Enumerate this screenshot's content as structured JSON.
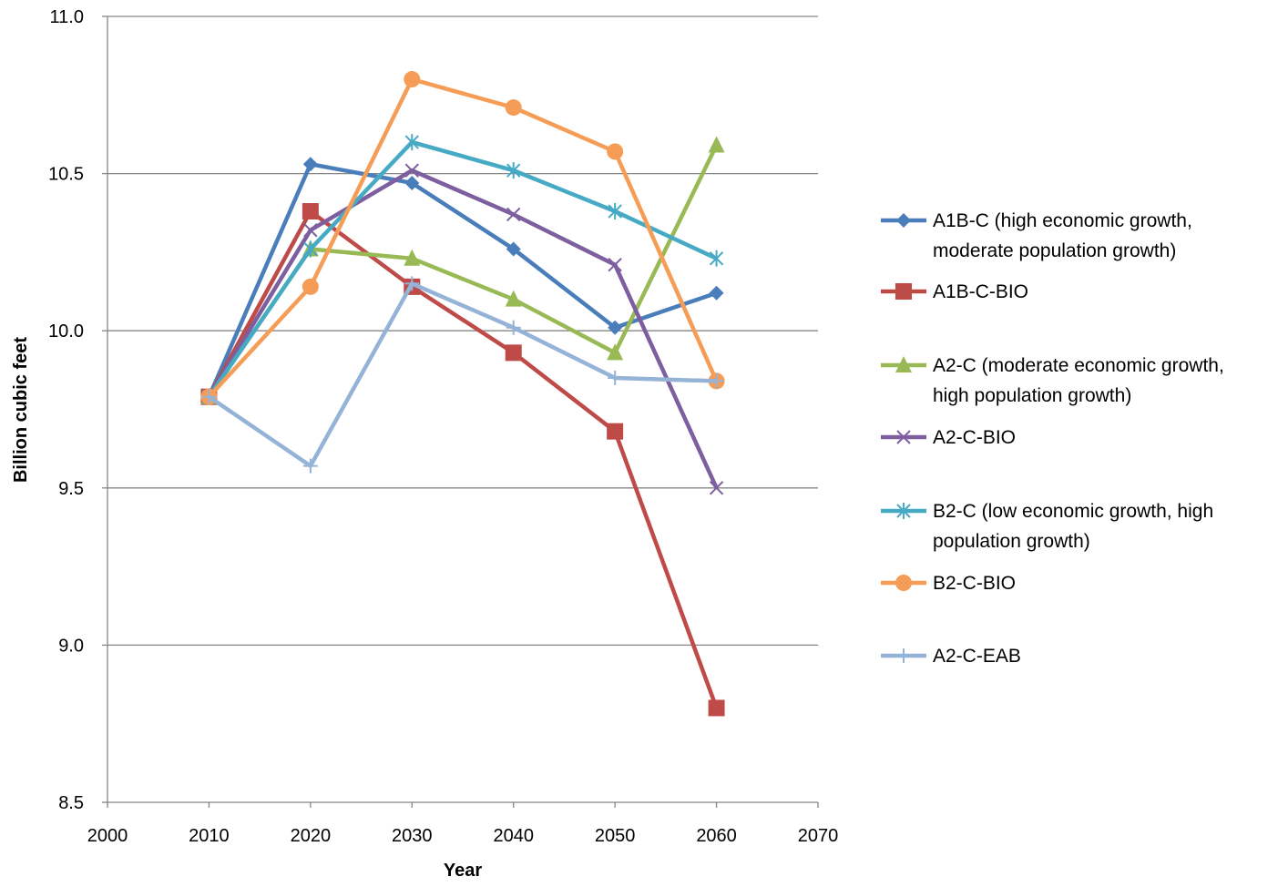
{
  "chart_data": {
    "type": "line",
    "title": "",
    "xlabel": "Year",
    "ylabel": "Billion cubic feet",
    "xlim": [
      2000,
      2070
    ],
    "ylim": [
      8.5,
      11.0
    ],
    "x_ticks": [
      2000,
      2010,
      2020,
      2030,
      2040,
      2050,
      2060,
      2070
    ],
    "x_tick_labels": [
      "2000",
      "2010",
      "2020",
      "2030",
      "2040",
      "2050",
      "2060",
      "2070"
    ],
    "y_ticks": [
      8.5,
      9.0,
      9.5,
      10.0,
      10.5,
      11.0
    ],
    "y_tick_labels": [
      "8.5",
      "9.0",
      "9.5",
      "10.0",
      "10.5",
      "11.0"
    ],
    "grid": "horizontal",
    "legend_position": "right",
    "x": [
      2010,
      2020,
      2030,
      2040,
      2050,
      2060
    ],
    "series": [
      {
        "name": "A1B-C (high economic growth, moderate population growth)",
        "legend_lines": [
          "A1B-C (high economic growth,",
          "moderate population growth)"
        ],
        "color": "#4A7EBB",
        "marker": "diamond",
        "values": [
          9.79,
          10.53,
          10.47,
          10.26,
          10.01,
          10.12
        ]
      },
      {
        "name": "A1B-C-BIO",
        "legend_lines": [
          "A1B-C-BIO"
        ],
        "color": "#BE4B48",
        "marker": "square",
        "values": [
          9.79,
          10.38,
          10.14,
          9.93,
          9.68,
          8.8
        ]
      },
      {
        "name": "A2-C (moderate economic growth, high population growth)",
        "legend_lines": [
          "A2-C (moderate economic growth,",
          "high population growth)"
        ],
        "color": "#98B954",
        "marker": "triangle",
        "values": [
          9.79,
          10.26,
          10.23,
          10.1,
          9.93,
          10.59
        ]
      },
      {
        "name": "A2-C-BIO",
        "legend_lines": [
          "A2-C-BIO"
        ],
        "color": "#7D5FA0",
        "marker": "x",
        "values": [
          9.79,
          10.32,
          10.51,
          10.37,
          10.21,
          9.5
        ]
      },
      {
        "name": "B2-C (low economic growth, high population growth)",
        "legend_lines": [
          "B2-C (low economic growth, high",
          "population growth)"
        ],
        "color": "#46AAC5",
        "marker": "star",
        "values": [
          9.79,
          10.26,
          10.6,
          10.51,
          10.38,
          10.23
        ]
      },
      {
        "name": "B2-C-BIO",
        "legend_lines": [
          "B2-C-BIO"
        ],
        "color": "#F59D56",
        "marker": "circle",
        "values": [
          9.79,
          10.14,
          10.8,
          10.71,
          10.57,
          9.84
        ]
      },
      {
        "name": "A2-C-EAB",
        "legend_lines": [
          "A2-C-EAB"
        ],
        "color": "#95B3D7",
        "marker": "plus",
        "values": [
          9.79,
          9.57,
          10.15,
          10.01,
          9.85,
          9.84
        ]
      }
    ]
  }
}
